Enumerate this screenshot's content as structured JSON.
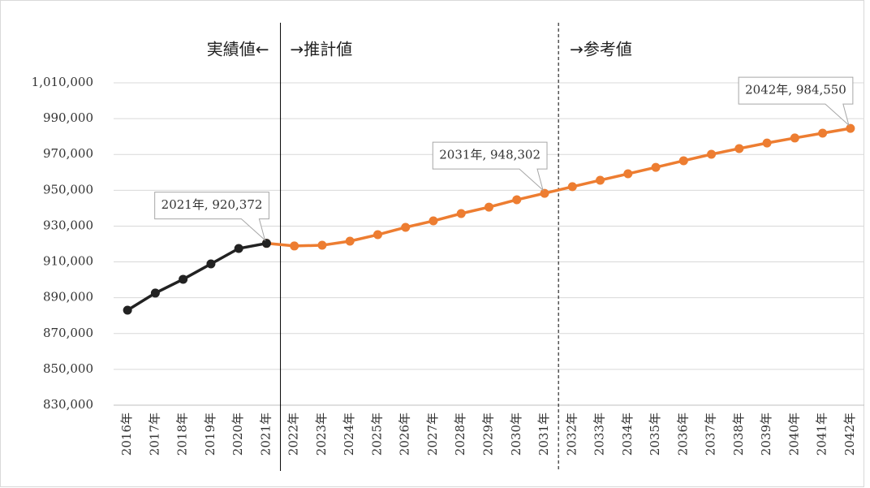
{
  "chart_data": {
    "type": "line",
    "categories": [
      "2016年",
      "2017年",
      "2018年",
      "2019年",
      "2020年",
      "2021年",
      "2022年",
      "2023年",
      "2024年",
      "2025年",
      "2026年",
      "2027年",
      "2028年",
      "2029年",
      "2030年",
      "2031年",
      "2032年",
      "2033年",
      "2034年",
      "2035年",
      "2036年",
      "2037年",
      "2038年",
      "2039年",
      "2040年",
      "2041年",
      "2042年"
    ],
    "series": [
      {
        "color": "#ed7d31",
        "values": [
          null,
          null,
          null,
          null,
          null,
          920372,
          918900,
          919300,
          921600,
          925200,
          929300,
          932900,
          937000,
          940600,
          944700,
          948302,
          952000,
          955600,
          959200,
          962800,
          966500,
          970100,
          973300,
          976400,
          979200,
          981900,
          984550
        ],
        "value_labels": [
          null,
          null,
          null,
          null,
          null,
          null,
          null,
          null,
          null,
          null,
          null,
          null,
          null,
          null,
          null,
          "2031年, 948,302",
          null,
          null,
          null,
          null,
          null,
          null,
          null,
          null,
          null,
          null,
          "2042年, 984,550"
        ]
      },
      {
        "color": "#222222",
        "values": [
          883050,
          892600,
          900300,
          908900,
          917500,
          920372,
          null,
          null,
          null,
          null,
          null,
          null,
          null,
          null,
          null,
          null,
          null,
          null,
          null,
          null,
          null,
          null,
          null,
          null,
          null,
          null,
          null
        ],
        "value_labels": [
          null,
          null,
          null,
          null,
          null,
          "2021年, 920,372",
          null,
          null,
          null,
          null,
          null,
          null,
          null,
          null,
          null,
          null,
          null,
          null,
          null,
          null,
          null,
          null,
          null,
          null,
          null,
          null,
          null
        ]
      }
    ],
    "annotations": [
      "実績値←",
      "→推計値",
      "→参考値"
    ],
    "ylim": [
      830000,
      1010000
    ],
    "yticks": [
      {
        "value": 830000,
        "label": "830,000"
      },
      {
        "value": 850000,
        "label": "850,000"
      },
      {
        "value": 870000,
        "label": "870,000"
      },
      {
        "value": 890000,
        "label": "890,000"
      },
      {
        "value": 910000,
        "label": "910,000"
      },
      {
        "value": 930000,
        "label": "930,000"
      },
      {
        "value": 950000,
        "label": "950,000"
      },
      {
        "value": 970000,
        "label": "970,000"
      },
      {
        "value": 990000,
        "label": "990,000"
      },
      {
        "value": 1010000,
        "label": "1,010,000"
      }
    ],
    "grid": true
  }
}
